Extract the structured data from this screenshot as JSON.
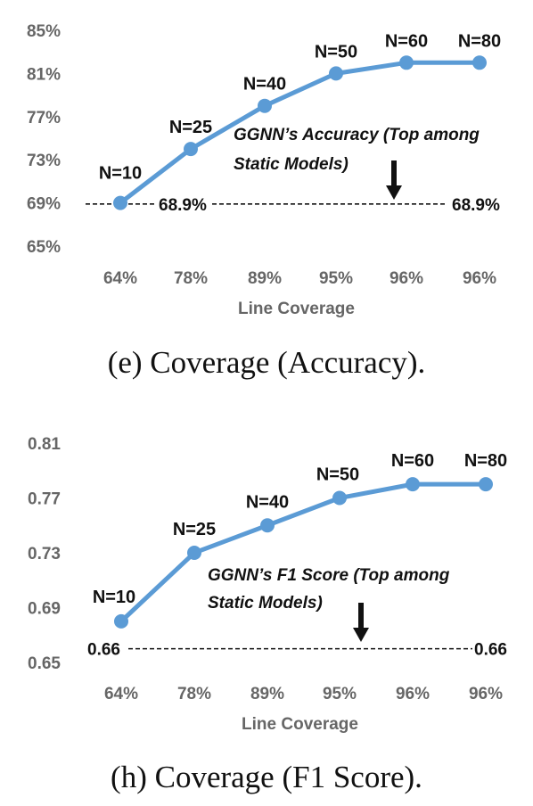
{
  "chart_data": [
    {
      "type": "line",
      "caption": "(e) Coverage (Accuracy).",
      "xlabel": "Line Coverage",
      "categories": [
        "64%",
        "78%",
        "89%",
        "95%",
        "96%",
        "96%"
      ],
      "series": [
        {
          "values": [
            69,
            74,
            78,
            81,
            82,
            82
          ],
          "point_labels": [
            "N=10",
            "N=25",
            "N=40",
            "N=50",
            "N=60",
            "N=80"
          ]
        }
      ],
      "ylim": [
        65,
        85
      ],
      "yticks": [
        65,
        69,
        73,
        77,
        81,
        85
      ],
      "ytick_labels": [
        "65%",
        "69%",
        "73%",
        "77%",
        "81%",
        "85%"
      ],
      "reference_line": {
        "value": 68.9,
        "left_label": "68.9%",
        "right_label": "68.9%"
      },
      "annotation": {
        "lines": [
          "GGNN’s Accuracy (Top among",
          "Static Models)"
        ],
        "arrow": "down"
      },
      "grid": false,
      "line_color": "#5b9bd5"
    },
    {
      "type": "line",
      "caption": "(h) Coverage (F1 Score).",
      "xlabel": "Line Coverage",
      "categories": [
        "64%",
        "78%",
        "89%",
        "95%",
        "96%",
        "96%"
      ],
      "series": [
        {
          "values": [
            0.68,
            0.73,
            0.75,
            0.77,
            0.78,
            0.78
          ],
          "point_labels": [
            "N=10",
            "N=25",
            "N=40",
            "N=50",
            "N=60",
            "N=80"
          ]
        }
      ],
      "ylim": [
        0.65,
        0.81
      ],
      "yticks": [
        0.65,
        0.69,
        0.73,
        0.77,
        0.81
      ],
      "ytick_labels": [
        "0.65",
        "0.69",
        "0.73",
        "0.77",
        "0.81"
      ],
      "reference_line": {
        "value": 0.66,
        "left_label": "0.66",
        "right_label": "0.66"
      },
      "annotation": {
        "lines": [
          "GGNN’s F1 Score (Top among",
          "Static Models)"
        ],
        "arrow": "down"
      },
      "grid": false,
      "line_color": "#5b9bd5"
    }
  ]
}
